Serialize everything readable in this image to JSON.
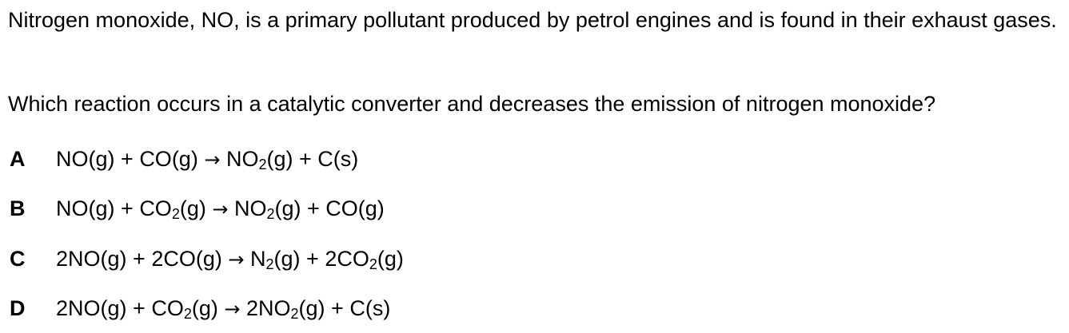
{
  "stem": "Nitrogen monoxide, NO, is a primary pollutant produced by petrol engines and is found in their exhaust gases.",
  "question": "Which reaction occurs in a catalytic converter and decreases the emission of nitrogen monoxide?",
  "options": [
    {
      "letter": "A",
      "lhs_1": "NO(g)",
      "lhs_2": "CO(g)",
      "rhs_1_pre": "NO",
      "rhs_1_sub": "2",
      "rhs_1_post": "(g)",
      "rhs_2": "C(s)"
    },
    {
      "letter": "B",
      "lhs_1": "NO(g)",
      "lhs_2_pre": "CO",
      "lhs_2_sub": "2",
      "lhs_2_post": "(g)",
      "rhs_1_pre": "NO",
      "rhs_1_sub": "2",
      "rhs_1_post": "(g)",
      "rhs_2": "CO(g)"
    },
    {
      "letter": "C",
      "lhs_1": "2NO(g)",
      "lhs_2": "2CO(g)",
      "rhs_1_pre": "N",
      "rhs_1_sub": "2",
      "rhs_1_post": "(g)",
      "rhs_2_pre": "2CO",
      "rhs_2_sub": "2",
      "rhs_2_post": "(g)"
    },
    {
      "letter": "D",
      "lhs_1": "2NO(g)",
      "lhs_2_pre": "CO",
      "lhs_2_sub": "2",
      "lhs_2_post": "(g)",
      "rhs_1_pre": "2NO",
      "rhs_1_sub": "2",
      "rhs_1_post": "(g)",
      "rhs_2": "C(s)"
    }
  ],
  "symbols": {
    "plus": "+",
    "arrow": "→"
  }
}
